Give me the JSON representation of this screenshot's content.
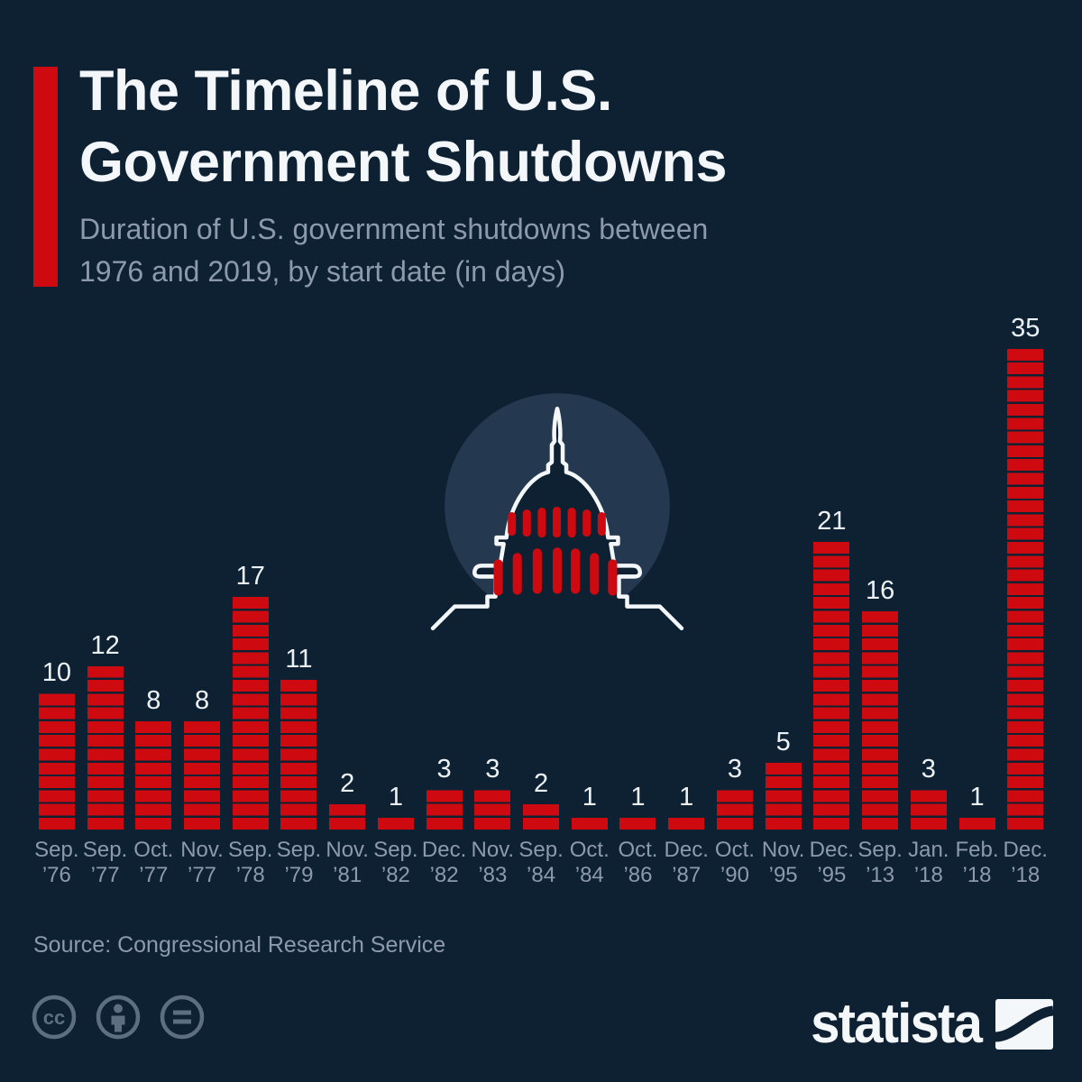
{
  "header": {
    "title_line1": "The Timeline of U.S.",
    "title_line2": "Government Shutdowns",
    "subtitle_line1": "Duration of U.S. government shutdowns between",
    "subtitle_line2": "1976 and 2019, by start date (in days)"
  },
  "chart_data": {
    "type": "bar",
    "title": "The Timeline of U.S. Government Shutdowns",
    "subtitle": "Duration of U.S. government shutdowns between 1976 and 2019, by start date (in days)",
    "unit": "days",
    "categories": [
      "Sep. ’76",
      "Sep. ’77",
      "Oct. ’77",
      "Nov. ’77",
      "Sep. ’78",
      "Sep. ’79",
      "Nov. ’81",
      "Sep. ’82",
      "Dec. ’82",
      "Nov. ’83",
      "Sep. ’84",
      "Oct. ’84",
      "Oct. ’86",
      "Dec. ’87",
      "Oct. ’90",
      "Nov. ’95",
      "Dec. ’95",
      "Sep. ’13",
      "Jan. ’18",
      "Feb. ’18",
      "Dec. ’18"
    ],
    "tick_months": [
      "Sep.",
      "Sep.",
      "Oct.",
      "Nov.",
      "Sep.",
      "Sep.",
      "Nov.",
      "Sep.",
      "Dec.",
      "Nov.",
      "Sep.",
      "Oct.",
      "Oct.",
      "Dec.",
      "Oct.",
      "Nov.",
      "Dec.",
      "Sep.",
      "Jan.",
      "Feb.",
      "Dec."
    ],
    "tick_years": [
      "’76",
      "’77",
      "’77",
      "’77",
      "’78",
      "’79",
      "’81",
      "’82",
      "’82",
      "’83",
      "’84",
      "’84",
      "’86",
      "’87",
      "’90",
      "’95",
      "’95",
      "’13",
      "’18",
      "’18",
      "’18"
    ],
    "values": [
      10,
      12,
      8,
      8,
      17,
      11,
      2,
      1,
      3,
      3,
      2,
      1,
      1,
      1,
      3,
      5,
      21,
      16,
      3,
      1,
      35
    ],
    "data_labels": true,
    "ylim": [
      0,
      35
    ],
    "grid": false,
    "legend": "none",
    "bar_style": "segmented, one segment per day"
  },
  "footer": {
    "source": "Source: Congressional Research Service",
    "license_icons": [
      "creative-commons-icon",
      "attribution-icon",
      "no-derivatives-icon"
    ],
    "brand": "statista"
  },
  "icons": {
    "center_icon": "us-capitol-icon",
    "brand_icon": "statista-wave-logo"
  },
  "colors": {
    "background": "#0e2133",
    "bar_red": "#ce0a10",
    "accent_red": "#ce0a10",
    "circle_background": "#24384f",
    "text_white": "#f4f7f9",
    "text_muted": "#8c9aac",
    "icon_muted": "#5c6e80"
  }
}
